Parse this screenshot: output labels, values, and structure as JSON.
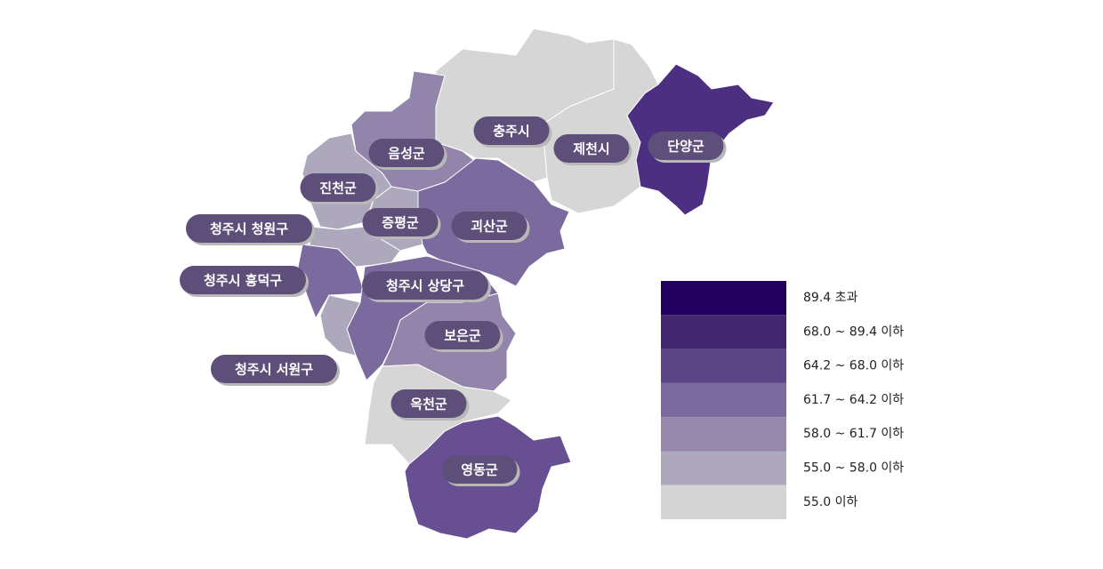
{
  "regions": [
    {
      "label": "충주시",
      "color": "#d6d6d6"
    },
    {
      "label": "제천시",
      "color": "#d6d6d6"
    },
    {
      "label": "단양군",
      "color": "#4c2f80"
    },
    {
      "label": "음성군",
      "color": "#9284ab"
    },
    {
      "label": "진천군",
      "color": "#aea8bd"
    },
    {
      "label": "증평군",
      "color": "#aea8bd"
    },
    {
      "label": "괴산군",
      "color": "#7a6a9e"
    },
    {
      "label": "청주시 청원구",
      "color": "#aea8bd"
    },
    {
      "label": "청주시 흥덕구",
      "color": "#7a6a9e"
    },
    {
      "label": "청주시 상당구",
      "color": "#7a6a9e"
    },
    {
      "label": "보은군",
      "color": "#9284ab"
    },
    {
      "label": "청주시 서원구",
      "color": "#aea8bd"
    },
    {
      "label": "옥천군",
      "color": "#d6d6d6"
    },
    {
      "label": "영동군",
      "color": "#674f91"
    }
  ],
  "legend": [
    {
      "label": "89.4 초과",
      "color": "#220060"
    },
    {
      "label": "68.0 ~ 89.4 이하",
      "color": "#42266e"
    },
    {
      "label": "64.2 ~ 68.0 이하",
      "color": "#5b4585"
    },
    {
      "label": "61.7 ~ 64.2 이하",
      "color": "#7a6a9e"
    },
    {
      "label": "58.0 ~ 61.7 이하",
      "color": "#9588ac"
    },
    {
      "label": "55.0 ~ 58.0 이하",
      "color": "#aea8bd"
    },
    {
      "label": "55.0 이하",
      "color": "#d4d4d4"
    }
  ]
}
